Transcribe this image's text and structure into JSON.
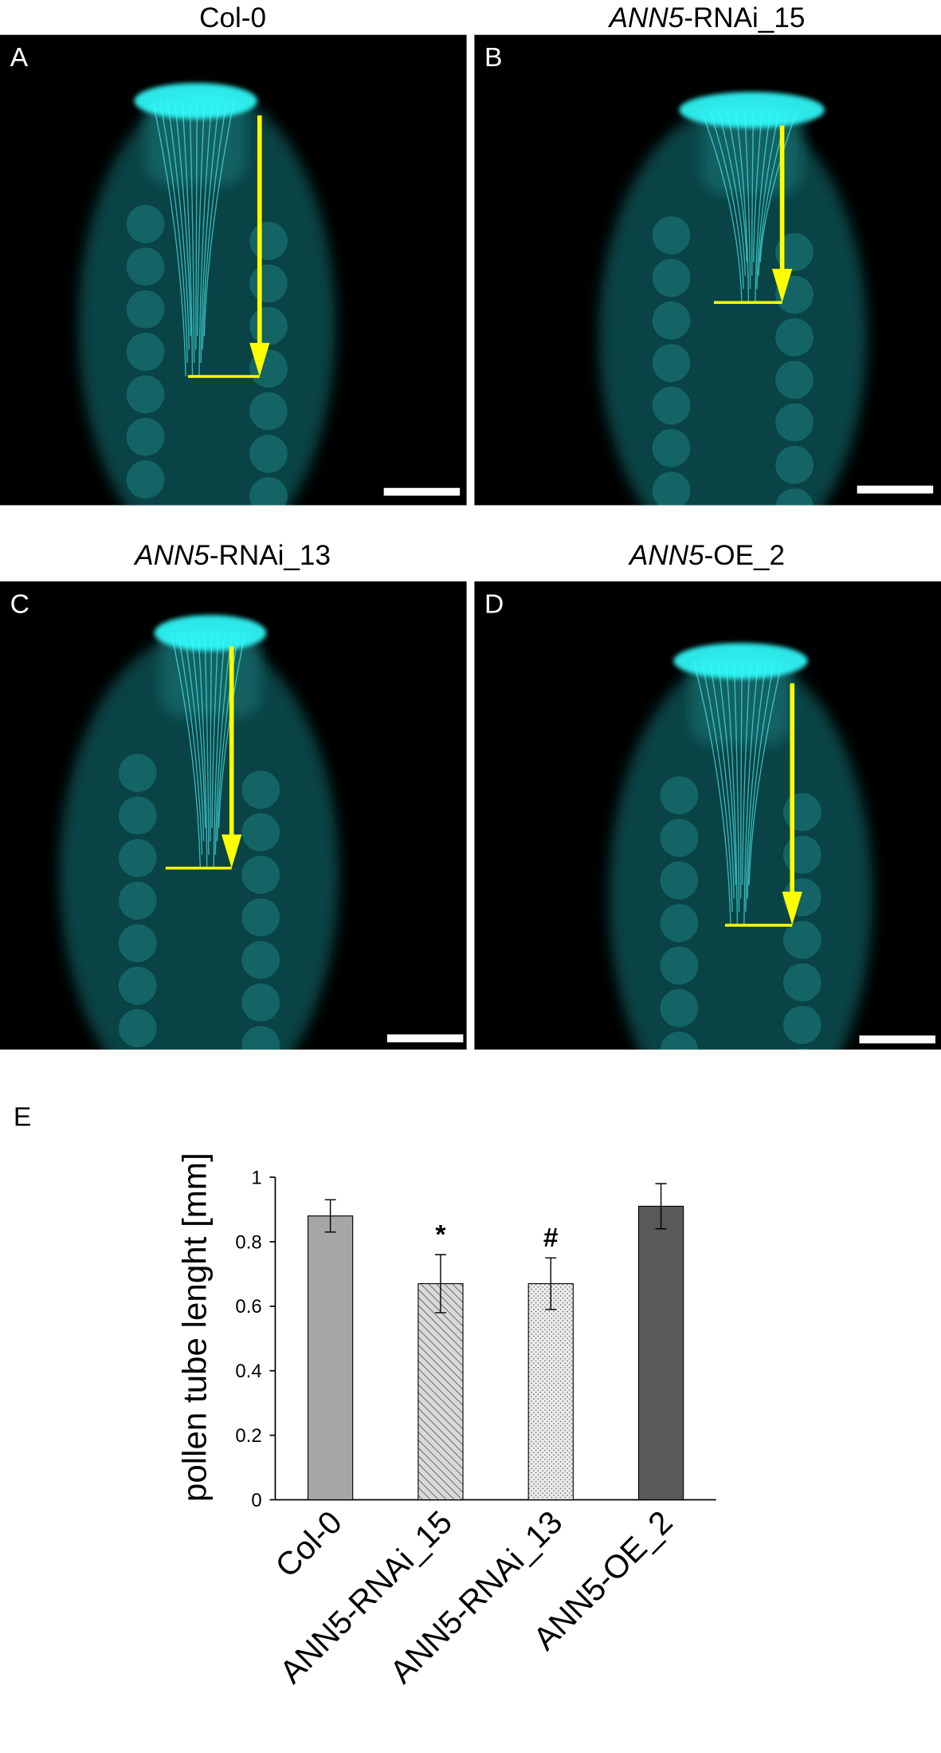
{
  "panels": [
    {
      "letter": "A",
      "title": [
        {
          "text": "Col-0",
          "italic": false
        }
      ]
    },
    {
      "letter": "B",
      "title": [
        {
          "text": "ANN5",
          "italic": true
        },
        {
          "text": "-RNAi_15",
          "italic": false
        }
      ]
    },
    {
      "letter": "C",
      "title": [
        {
          "text": "ANN5",
          "italic": true
        },
        {
          "text": "-RNAi_13",
          "italic": false
        }
      ]
    },
    {
      "letter": "D",
      "title": [
        {
          "text": "ANN5",
          "italic": true
        },
        {
          "text": "-OE_2",
          "italic": false
        }
      ]
    }
  ],
  "chart_data": {
    "type": "bar",
    "panel_letter": "E",
    "y_label": "pollen tube lenght [mm]",
    "categories": [
      "Col-0",
      "ANN5-RNAi_15",
      "ANN5-RNAi_13",
      "ANN5-OE_2"
    ],
    "values": [
      0.88,
      0.67,
      0.67,
      0.91
    ],
    "errors": [
      0.05,
      0.09,
      0.08,
      0.07
    ],
    "value_annotations": [
      null,
      "*",
      "#",
      null
    ],
    "colors": [
      "#a6a6a6",
      "#d9d9d9",
      "#ececec",
      "#595959"
    ],
    "patterns": [
      null,
      "hatch",
      "dots",
      null
    ],
    "ylim": [
      0,
      1
    ],
    "yticks": [
      0,
      0.2,
      0.4,
      0.6,
      0.8,
      1
    ]
  }
}
